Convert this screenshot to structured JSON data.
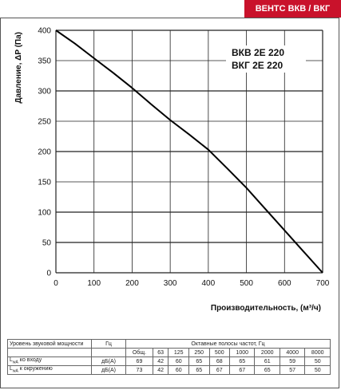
{
  "brand_badge": "ВЕНТС ВКВ / ВКГ",
  "chart_data": {
    "type": "line",
    "title_lines": [
      "ВКВ 2Е 220",
      "ВКГ 2Е 220"
    ],
    "xlabel": "Производительность, (м³/ч)",
    "ylabel": "Давление, ΔP (Па)",
    "xlim": [
      0,
      700
    ],
    "ylim": [
      0,
      400
    ],
    "xticks": [
      0,
      100,
      200,
      300,
      400,
      500,
      600,
      700
    ],
    "yticks": [
      0,
      50,
      100,
      150,
      200,
      250,
      300,
      350,
      400
    ],
    "grid": true,
    "series": [
      {
        "x": [
          0,
          50,
          100,
          150,
          200,
          250,
          300,
          350,
          400,
          450,
          500,
          550,
          600,
          650,
          700
        ],
        "y": [
          400,
          378,
          354,
          330,
          305,
          278,
          252,
          228,
          203,
          172,
          140,
          105,
          70,
          35,
          0
        ]
      }
    ]
  },
  "noise_table": {
    "title": "Уровень звуковой мощности",
    "unit_hz": "Гц",
    "octave_label": "Октавные полосы частот, Гц",
    "columns": [
      "Общ.",
      "63",
      "125",
      "250",
      "500",
      "1000",
      "2000",
      "4000",
      "8000"
    ],
    "rows": [
      {
        "label_main": "L",
        "label_sub": "wA",
        "label_rest": " ко входу",
        "unit": "дБ(А)",
        "values": [
          "69",
          "42",
          "60",
          "65",
          "68",
          "65",
          "61",
          "59",
          "50"
        ]
      },
      {
        "label_main": "L",
        "label_sub": "wA",
        "label_rest": " к окружению",
        "unit": "дБ(А)",
        "values": [
          "73",
          "42",
          "60",
          "65",
          "67",
          "67",
          "65",
          "57",
          "50"
        ]
      }
    ]
  }
}
